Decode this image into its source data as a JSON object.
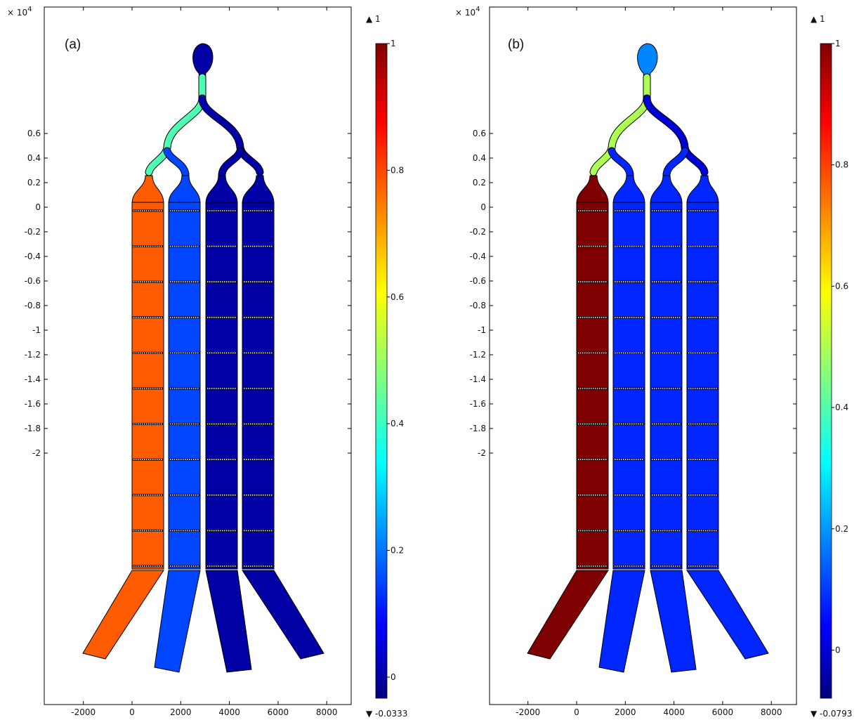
{
  "panels": [
    {
      "label": "(a)",
      "multiplier_base": "× 10",
      "multiplier_exp": "4",
      "y_ticks": [
        "0.6",
        "0.4",
        "0.2",
        "0",
        "-0.2",
        "-0.4",
        "-0.6",
        "-0.8",
        "-1",
        "-1.2",
        "-1.4",
        "-1.6",
        "-1.8",
        "-2"
      ],
      "x_ticks": [
        "-2000",
        "0",
        "2000",
        "4000",
        "6000",
        "8000"
      ],
      "colorbar": {
        "max_marker": "▲ 1",
        "min_marker": "▼ -0.0333",
        "ticks": [
          "1",
          "0.8",
          "0.6",
          "0.4",
          "0.2",
          "0"
        ],
        "min": -0.0333,
        "max": 1
      },
      "channel_values": [
        0.78,
        0.15,
        0.0,
        0.0
      ],
      "branch_values": {
        "upper_left": 0.42,
        "upper_right": 0.0,
        "inlet": 0.0
      }
    },
    {
      "label": "(b)",
      "multiplier_base": "× 10",
      "multiplier_exp": "4",
      "y_ticks": [
        "0.6",
        "0.4",
        "0.2",
        "0",
        "-0.2",
        "-0.4",
        "-0.6",
        "-0.8",
        "-1",
        "-1.2",
        "-1.4",
        "-1.6",
        "-1.8",
        "-2"
      ],
      "x_ticks": [
        "-2000",
        "0",
        "2000",
        "4000",
        "6000",
        "8000"
      ],
      "colorbar": {
        "max_marker": "▲ 1",
        "min_marker": "▼ -0.0793",
        "ticks": [
          "1",
          "0.8",
          "0.6",
          "0.4",
          "0.2",
          "0"
        ],
        "min": -0.0793,
        "max": 1
      },
      "channel_values": [
        1.0,
        0.08,
        0.08,
        0.08
      ],
      "branch_values": {
        "upper_left": 0.5,
        "upper_right": 0.0,
        "inlet": 0.18
      }
    }
  ],
  "colors": {
    "jet": [
      "#00007f",
      "#0000ff",
      "#007fff",
      "#00ffff",
      "#7fff7f",
      "#ffff00",
      "#ff7f00",
      "#ff0000",
      "#7f0000"
    ],
    "separator_dot": "#f2f2f2",
    "outline": "#000000"
  }
}
